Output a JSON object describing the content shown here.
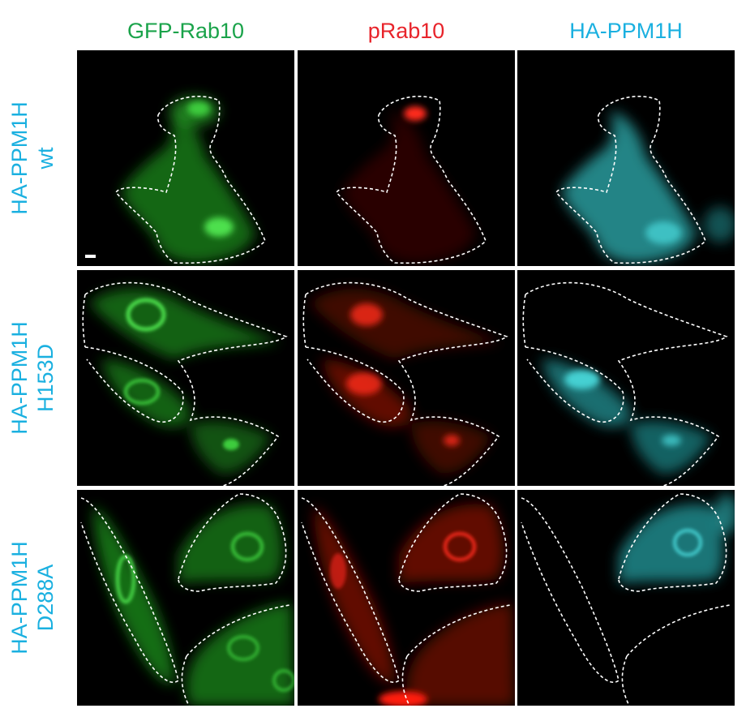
{
  "columns": [
    {
      "label": "GFP-Rab10",
      "color": "#1aa34a"
    },
    {
      "label": "pRab10",
      "color": "#e8242b"
    },
    {
      "label": "HA-PPM1H",
      "color": "#1ab0e0"
    }
  ],
  "rows": [
    {
      "line1": "HA-PPM1H",
      "line2": "wt"
    },
    {
      "line1": "HA-PPM1H",
      "line2": "H153D"
    },
    {
      "line1": "HA-PPM1H",
      "line2": "D288A"
    }
  ],
  "label_color": "#1ab0e0",
  "channel_colors": {
    "green": "#2ec02e",
    "red": "#ff2a1a",
    "cyan": "#35c8cc"
  }
}
